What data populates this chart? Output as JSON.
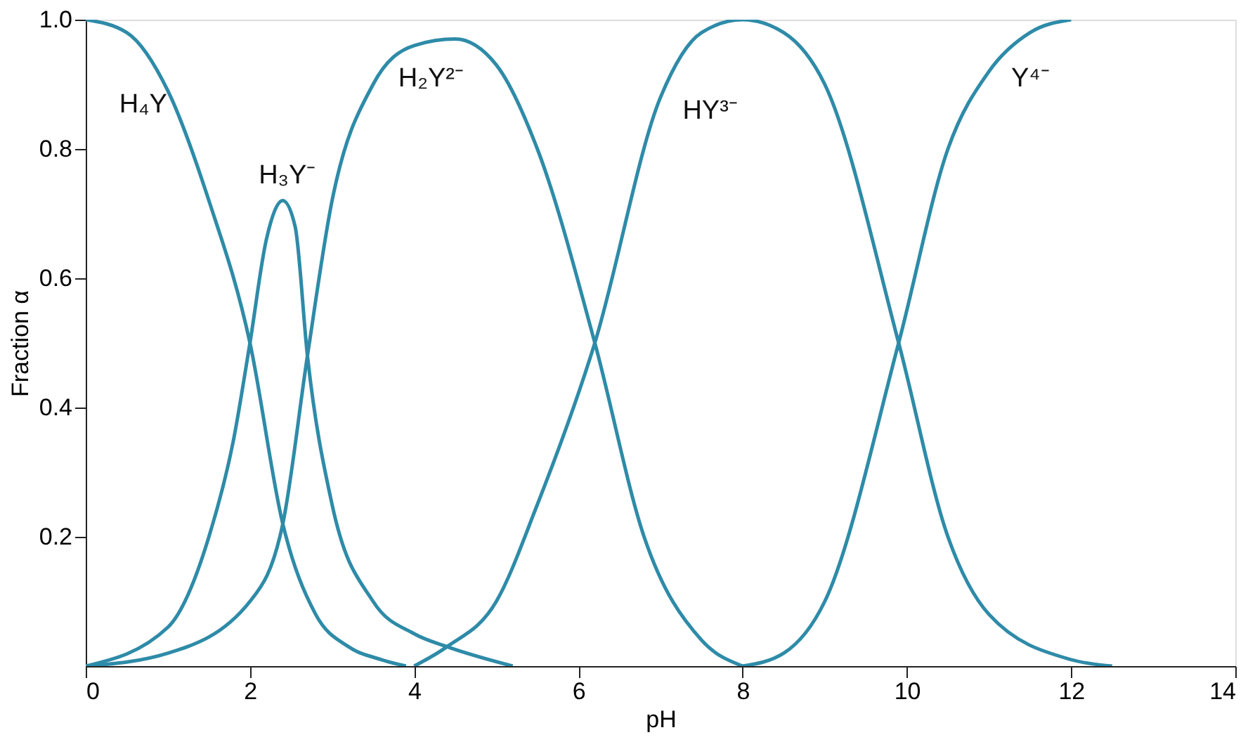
{
  "chart_data": {
    "type": "line",
    "xlabel": "pH",
    "ylabel": "Fraction α",
    "xlim": [
      0,
      14
    ],
    "xticks": [
      0,
      2,
      4,
      6,
      8,
      10,
      12,
      14
    ],
    "ylim": [
      0,
      1
    ],
    "yticks": [
      0.2,
      0.4,
      0.6,
      0.8,
      {
        "value": 1,
        "label": "1.0"
      }
    ],
    "grid": false,
    "marker": "none",
    "line_style": "solid",
    "series": [
      {
        "name": "H₄Y",
        "color": "#2e8ba8",
        "x": [
          0,
          0.5,
          1,
          1.5,
          2,
          2.4,
          2.8,
          3.2,
          3.6,
          3.9
        ],
        "values": [
          1.0,
          0.98,
          0.89,
          0.72,
          0.5,
          0.22,
          0.08,
          0.03,
          0.01,
          0
        ]
      },
      {
        "name": "H₃Y⁻",
        "color": "#2e8ba8",
        "x": [
          0,
          1,
          1.5,
          1.8,
          2,
          2.2,
          2.4,
          2.55,
          2.7,
          3,
          3.5,
          4,
          4.4,
          5.2
        ],
        "values": [
          0,
          0.06,
          0.2,
          0.35,
          0.5,
          0.66,
          0.72,
          0.68,
          0.48,
          0.25,
          0.1,
          0.05,
          0.03,
          0
        ]
      },
      {
        "name": "H₂Y²⁻",
        "color": "#2e8ba8",
        "x": [
          0,
          1,
          2,
          2.4,
          2.7,
          3,
          3.5,
          4,
          4.5,
          5,
          5.5,
          6.2,
          6.8,
          7.5,
          8
        ],
        "values": [
          0,
          0.02,
          0.1,
          0.22,
          0.48,
          0.72,
          0.9,
          0.96,
          0.97,
          0.93,
          0.8,
          0.5,
          0.2,
          0.04,
          0
        ]
      },
      {
        "name": "HY³⁻",
        "color": "#2e8ba8",
        "x": [
          4,
          4.4,
          5,
          5.5,
          6.2,
          7,
          7.5,
          8,
          8.5,
          9,
          9.9,
          10.5,
          11,
          12,
          12.5
        ],
        "values": [
          0,
          0.03,
          0.1,
          0.25,
          0.5,
          0.88,
          0.98,
          1.0,
          0.98,
          0.9,
          0.5,
          0.2,
          0.08,
          0.01,
          0
        ]
      },
      {
        "name": "Y⁴⁻",
        "color": "#2e8ba8",
        "x": [
          8,
          8.5,
          9,
          9.9,
          10.5,
          11,
          11.5,
          12
        ],
        "values": [
          0,
          0.02,
          0.1,
          0.5,
          0.8,
          0.92,
          0.98,
          1.0
        ]
      }
    ]
  }
}
